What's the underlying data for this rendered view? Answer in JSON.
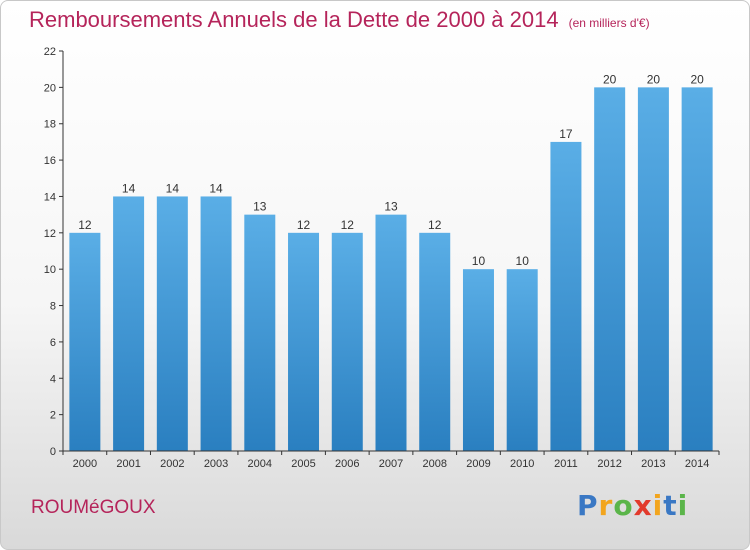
{
  "chart_data": {
    "type": "bar",
    "title": "Remboursements Annuels de la Dette de 2000 à 2014",
    "unit": "(en milliers d'€)",
    "categories": [
      "2000",
      "2001",
      "2002",
      "2003",
      "2004",
      "2005",
      "2006",
      "2007",
      "2008",
      "2009",
      "2010",
      "2011",
      "2012",
      "2013",
      "2014"
    ],
    "values": [
      12,
      14,
      14,
      14,
      13,
      12,
      12,
      13,
      12,
      10,
      10,
      17,
      20,
      20,
      20
    ],
    "ylim": [
      0,
      22
    ],
    "yticks": [
      0,
      2,
      4,
      6,
      8,
      10,
      12,
      14,
      16,
      18,
      20,
      22
    ],
    "grid": false,
    "legend": "none",
    "bar_color_top": "#5aaee6",
    "bar_color_bottom": "#2a7fc0"
  },
  "footer": {
    "commune": "ROUMéGOUX",
    "brand_letters": [
      "P",
      "r",
      "o",
      "x",
      "i",
      "t",
      "i"
    ],
    "brand_colors": [
      "#3a78c4",
      "#f2a51e",
      "#5bb54a",
      "#e23a2c",
      "#f2a51e",
      "#3a78c4",
      "#5bb54a"
    ]
  },
  "colors": {
    "title": "#b5245a",
    "axis": "#333333"
  }
}
